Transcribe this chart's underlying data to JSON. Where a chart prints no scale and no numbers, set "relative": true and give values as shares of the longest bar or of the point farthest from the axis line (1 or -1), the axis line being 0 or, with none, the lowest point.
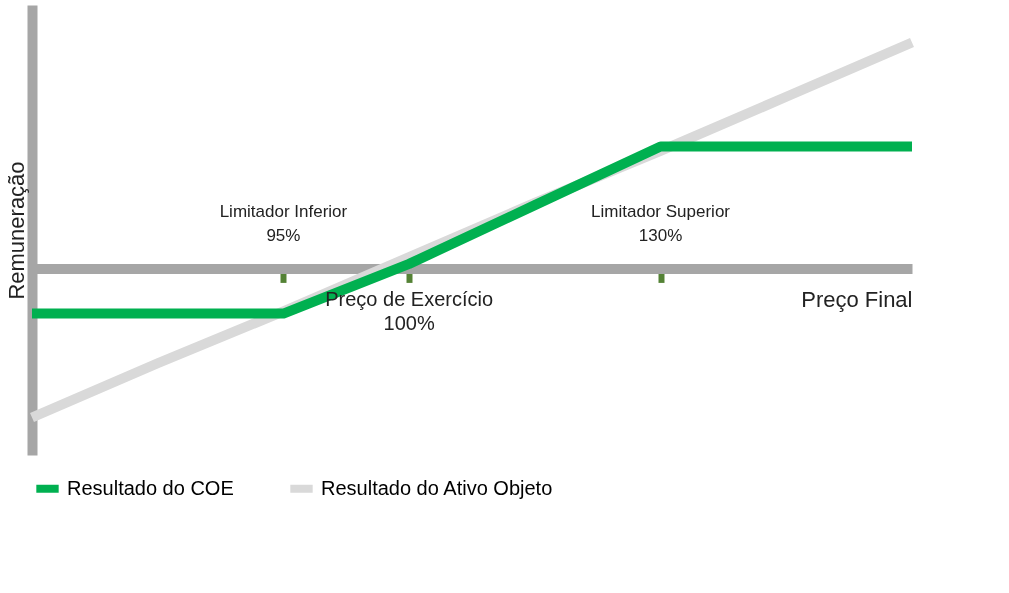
{
  "chart_data": {
    "type": "line",
    "relative": true,
    "xlabel": "Preço Final",
    "ylabel": "Remuneração",
    "categories": [
      null,
      null,
      "95%",
      "100%",
      null,
      "130%",
      null,
      null
    ],
    "series": [
      {
        "name": "Resultado do COE",
        "color": "#00b050",
        "values": [
          -0.2,
          -0.2,
          -0.2,
          0.02,
          0.28,
          0.54,
          0.54,
          0.54
        ]
      },
      {
        "name": "Resultado do Ativo Objeto",
        "color": "#d9d9d9",
        "values": [
          -0.66,
          -0.42,
          -0.19,
          0.05,
          0.29,
          0.52,
          0.76,
          1.0
        ]
      }
    ],
    "annotations": [
      "Limitador Inferior",
      "Preço de Exercício",
      "Limitador Superior"
    ],
    "legend": "bottom",
    "grid": false,
    "marker": "none",
    "line_style": "solid"
  }
}
